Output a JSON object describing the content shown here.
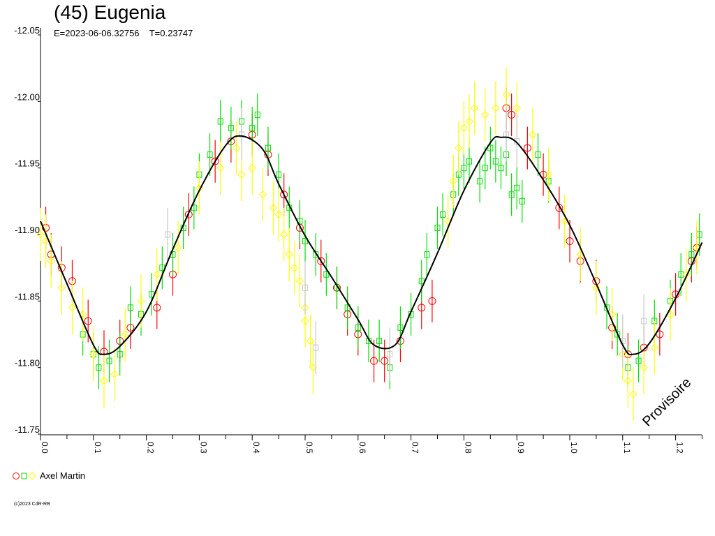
{
  "chart_data": {
    "type": "scatter",
    "title": "(45) Eugenia",
    "subtitle": "E=2023-06-06.32756    T=0.23747",
    "xlim": [
      0.0,
      1.25
    ],
    "ylim": [
      -12.05,
      -11.75
    ],
    "y_inverted": true,
    "grid": false,
    "xticks": [
      "0.0",
      "0.1",
      "0.2",
      "0.3",
      "0.4",
      "0.5",
      "0.6",
      "0.7",
      "0.8",
      "0.9",
      "1.0",
      "1.1",
      "1.2"
    ],
    "yticks": [
      "-12.05",
      "-12.00",
      "-11.95",
      "-11.90",
      "-11.85",
      "-11.80",
      "-11.75"
    ],
    "watermark": "Provisoire",
    "legend": {
      "label": "Axel Martin",
      "placement": "bottom-left"
    },
    "copyright": "(c)2023 CdR-RB",
    "fit_curve": {
      "color": "#000000",
      "points": [
        [
          0.0,
          -11.91
        ],
        [
          0.05,
          -11.863
        ],
        [
          0.1,
          -11.817
        ],
        [
          0.12,
          -11.81
        ],
        [
          0.15,
          -11.816
        ],
        [
          0.2,
          -11.842
        ],
        [
          0.25,
          -11.889
        ],
        [
          0.3,
          -11.933
        ],
        [
          0.35,
          -11.967
        ],
        [
          0.38,
          -11.974
        ],
        [
          0.42,
          -11.964
        ],
        [
          0.45,
          -11.938
        ],
        [
          0.5,
          -11.899
        ],
        [
          0.55,
          -11.868
        ],
        [
          0.6,
          -11.836
        ],
        [
          0.63,
          -11.817
        ],
        [
          0.67,
          -11.817
        ],
        [
          0.7,
          -11.842
        ],
        [
          0.75,
          -11.886
        ],
        [
          0.8,
          -11.933
        ],
        [
          0.85,
          -11.969
        ],
        [
          0.87,
          -11.973
        ],
        [
          0.9,
          -11.969
        ],
        [
          0.95,
          -11.941
        ],
        [
          1.0,
          -11.907
        ],
        [
          1.05,
          -11.863
        ],
        [
          1.1,
          -11.817
        ],
        [
          1.12,
          -11.81
        ],
        [
          1.15,
          -11.818
        ],
        [
          1.2,
          -11.852
        ],
        [
          1.25,
          -11.894
        ]
      ]
    },
    "series": [
      {
        "marker": "circle",
        "color": "#ff0000",
        "err": 0.008,
        "points": [
          [
            0.01,
            -11.905
          ],
          [
            0.02,
            -11.885
          ],
          [
            0.04,
            -11.875
          ],
          [
            0.06,
            -11.865
          ],
          [
            0.09,
            -11.835
          ],
          [
            0.12,
            -11.812
          ],
          [
            0.15,
            -11.82
          ],
          [
            0.17,
            -11.83
          ],
          [
            0.22,
            -11.845
          ],
          [
            0.25,
            -11.87
          ],
          [
            0.28,
            -11.915
          ],
          [
            0.33,
            -11.955
          ],
          [
            0.36,
            -11.97
          ],
          [
            0.4,
            -11.975
          ],
          [
            0.43,
            -11.96
          ],
          [
            0.46,
            -11.93
          ],
          [
            0.49,
            -11.905
          ],
          [
            0.53,
            -11.88
          ],
          [
            0.56,
            -11.86
          ],
          [
            0.58,
            -11.84
          ],
          [
            0.6,
            -11.825
          ],
          [
            0.63,
            -11.805
          ],
          [
            0.65,
            -11.805
          ],
          [
            0.68,
            -11.82
          ],
          [
            0.72,
            -11.845
          ],
          [
            0.74,
            -11.85
          ],
          [
            0.88,
            -11.995
          ],
          [
            0.89,
            -11.99
          ],
          [
            0.92,
            -11.965
          ],
          [
            0.95,
            -11.945
          ],
          [
            0.98,
            -11.92
          ],
          [
            1.0,
            -11.895
          ],
          [
            1.02,
            -11.88
          ],
          [
            1.05,
            -11.865
          ],
          [
            1.08,
            -11.83
          ],
          [
            1.11,
            -11.81
          ],
          [
            1.14,
            -11.815
          ],
          [
            1.17,
            -11.825
          ],
          [
            1.2,
            -11.855
          ],
          [
            1.23,
            -11.88
          ],
          [
            1.24,
            -11.89
          ]
        ]
      },
      {
        "marker": "square",
        "color": "#00e000",
        "err": 0.008,
        "points": [
          [
            0.08,
            -11.825
          ],
          [
            0.1,
            -11.81
          ],
          [
            0.11,
            -11.8
          ],
          [
            0.13,
            -11.805
          ],
          [
            0.15,
            -11.81
          ],
          [
            0.17,
            -11.845
          ],
          [
            0.19,
            -11.84
          ],
          [
            0.21,
            -11.855
          ],
          [
            0.23,
            -11.875
          ],
          [
            0.25,
            -11.885
          ],
          [
            0.27,
            -11.905
          ],
          [
            0.29,
            -11.92
          ],
          [
            0.3,
            -11.945
          ],
          [
            0.32,
            -11.96
          ],
          [
            0.34,
            -11.985
          ],
          [
            0.36,
            -11.98
          ],
          [
            0.38,
            -11.985
          ],
          [
            0.4,
            -11.98
          ],
          [
            0.41,
            -11.99
          ],
          [
            0.43,
            -11.965
          ],
          [
            0.45,
            -11.945
          ],
          [
            0.47,
            -11.92
          ],
          [
            0.49,
            -11.91
          ],
          [
            0.5,
            -11.895
          ],
          [
            0.52,
            -11.885
          ],
          [
            0.54,
            -11.87
          ],
          [
            0.56,
            -11.86
          ],
          [
            0.58,
            -11.845
          ],
          [
            0.6,
            -11.83
          ],
          [
            0.62,
            -11.82
          ],
          [
            0.64,
            -11.82
          ],
          [
            0.66,
            -11.8
          ],
          [
            0.68,
            -11.83
          ],
          [
            0.7,
            -11.84
          ],
          [
            0.72,
            -11.865
          ],
          [
            0.73,
            -11.885
          ],
          [
            0.75,
            -11.905
          ],
          [
            0.76,
            -11.915
          ],
          [
            0.78,
            -11.93
          ],
          [
            0.79,
            -11.945
          ],
          [
            0.8,
            -11.95
          ],
          [
            0.81,
            -11.955
          ],
          [
            0.83,
            -11.94
          ],
          [
            0.84,
            -11.95
          ],
          [
            0.85,
            -11.965
          ],
          [
            0.86,
            -11.955
          ],
          [
            0.87,
            -11.95
          ],
          [
            0.88,
            -11.96
          ],
          [
            0.89,
            -11.93
          ],
          [
            0.9,
            -11.935
          ],
          [
            0.91,
            -11.925
          ],
          [
            0.94,
            -11.96
          ],
          [
            0.96,
            -11.94
          ],
          [
            1.07,
            -11.845
          ],
          [
            1.09,
            -11.825
          ],
          [
            1.11,
            -11.8
          ],
          [
            1.13,
            -11.805
          ],
          [
            1.16,
            -11.835
          ],
          [
            1.19,
            -11.85
          ],
          [
            1.21,
            -11.87
          ],
          [
            1.23,
            -11.885
          ],
          [
            1.245,
            -11.9
          ]
        ]
      },
      {
        "marker": "diamond",
        "color": "#ffff00",
        "err": 0.01,
        "points": [
          [
            0.0,
            -11.9
          ],
          [
            0.01,
            -11.895
          ],
          [
            0.02,
            -11.88
          ],
          [
            0.04,
            -11.86
          ],
          [
            0.06,
            -11.845
          ],
          [
            0.08,
            -11.84
          ],
          [
            0.1,
            -11.81
          ],
          [
            0.12,
            -11.79
          ],
          [
            0.14,
            -11.795
          ],
          [
            0.16,
            -11.825
          ],
          [
            0.19,
            -11.85
          ],
          [
            0.22,
            -11.87
          ],
          [
            0.26,
            -11.89
          ],
          [
            0.3,
            -11.935
          ],
          [
            0.34,
            -11.95
          ],
          [
            0.37,
            -11.965
          ],
          [
            0.38,
            -11.945
          ],
          [
            0.4,
            -11.95
          ],
          [
            0.42,
            -11.93
          ],
          [
            0.44,
            -11.92
          ],
          [
            0.45,
            -11.915
          ],
          [
            0.46,
            -11.9
          ],
          [
            0.47,
            -11.885
          ],
          [
            0.48,
            -11.875
          ],
          [
            0.49,
            -11.865
          ],
          [
            0.5,
            -11.845
          ],
          [
            0.5,
            -11.835
          ],
          [
            0.51,
            -11.82
          ],
          [
            0.515,
            -11.8
          ],
          [
            0.77,
            -11.91
          ],
          [
            0.78,
            -11.94
          ],
          [
            0.79,
            -11.965
          ],
          [
            0.8,
            -11.98
          ],
          [
            0.81,
            -11.985
          ],
          [
            0.82,
            -11.995
          ],
          [
            0.84,
            -11.99
          ],
          [
            0.86,
            -11.995
          ],
          [
            0.88,
            -12.005
          ],
          [
            0.9,
            -11.995
          ],
          [
            0.93,
            -11.975
          ],
          [
            0.96,
            -11.945
          ],
          [
            0.99,
            -11.91
          ],
          [
            1.02,
            -11.885
          ],
          [
            1.05,
            -11.86
          ],
          [
            1.08,
            -11.84
          ],
          [
            1.1,
            -11.81
          ],
          [
            1.11,
            -11.79
          ],
          [
            1.12,
            -11.78
          ],
          [
            1.14,
            -11.8
          ],
          [
            1.16,
            -11.815
          ],
          [
            1.19,
            -11.84
          ],
          [
            1.22,
            -11.87
          ],
          [
            1.24,
            -11.89
          ]
        ]
      },
      {
        "marker": "square",
        "color": "#c8c8c8",
        "err": 0.01,
        "points": [
          [
            0.24,
            -11.9
          ],
          [
            0.38,
            -11.975
          ],
          [
            0.5,
            -11.86
          ],
          [
            0.52,
            -11.815
          ],
          [
            0.66,
            -11.81
          ],
          [
            0.88,
            -11.975
          ],
          [
            0.9,
            -11.97
          ],
          [
            1.1,
            -11.82
          ],
          [
            1.14,
            -11.835
          ]
        ]
      }
    ]
  }
}
